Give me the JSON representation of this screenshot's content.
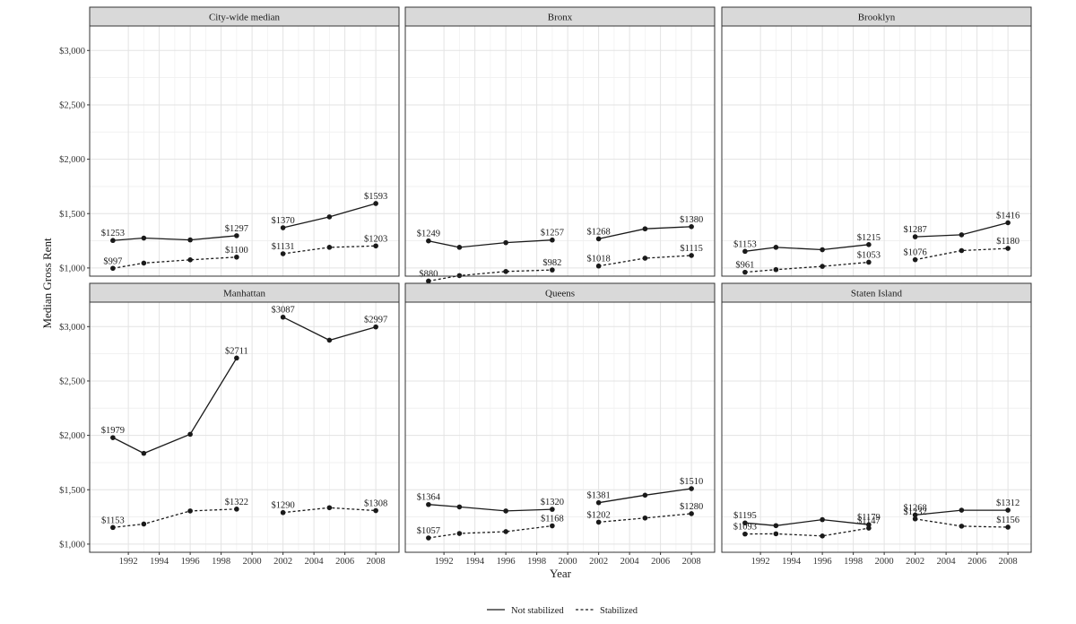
{
  "chart_data": {
    "type": "line",
    "xlabel": "Year",
    "ylabel": "Median Gross Rent",
    "x_ticks": [
      1992,
      1994,
      1996,
      1998,
      2000,
      2002,
      2004,
      2006,
      2008
    ],
    "xlim": [
      1989.5,
      2009.5
    ],
    "y_ticks": [
      1000,
      1500,
      2000,
      2500,
      3000
    ],
    "y_tick_labels": [
      "$1,000",
      "$1,500",
      "$2,000",
      "$2,500",
      "$3,000"
    ],
    "ylim": [
      925,
      3225
    ],
    "grid": true,
    "legend": {
      "position": "bottom",
      "entries": [
        {
          "label": "Not stabilized",
          "linestyle": "solid"
        },
        {
          "label": "Stabilized",
          "linestyle": "dashed"
        }
      ]
    },
    "panels": [
      {
        "title": "City-wide median",
        "series": [
          {
            "legend": "Not stabilized",
            "segments": [
              {
                "x": [
                  1991,
                  1993,
                  1996,
                  1999
                ],
                "y": [
                  1253,
                  1275,
                  1258,
                  1297
                ]
              },
              {
                "x": [
                  2002,
                  2005,
                  2008
                ],
                "y": [
                  1370,
                  1470,
                  1593
                ]
              }
            ]
          },
          {
            "legend": "Stabilized",
            "segments": [
              {
                "x": [
                  1991,
                  1993,
                  1996,
                  1999
                ],
                "y": [
                  997,
                  1045,
                  1075,
                  1100
                ]
              },
              {
                "x": [
                  2002,
                  2005,
                  2008
                ],
                "y": [
                  1131,
                  1190,
                  1203
                ]
              }
            ]
          }
        ],
        "labels": [
          {
            "x": 1991,
            "y": 1253,
            "text": "$1253"
          },
          {
            "x": 1999,
            "y": 1297,
            "text": "$1297"
          },
          {
            "x": 2002,
            "y": 1370,
            "text": "$1370"
          },
          {
            "x": 2008,
            "y": 1593,
            "text": "$1593"
          },
          {
            "x": 1991,
            "y": 997,
            "text": "$997"
          },
          {
            "x": 1999,
            "y": 1100,
            "text": "$1100"
          },
          {
            "x": 2002,
            "y": 1131,
            "text": "$1131"
          },
          {
            "x": 2008,
            "y": 1203,
            "text": "$1203"
          }
        ]
      },
      {
        "title": "Bronx",
        "series": [
          {
            "legend": "Not stabilized",
            "segments": [
              {
                "x": [
                  1991,
                  1993,
                  1996,
                  1999
                ],
                "y": [
                  1249,
                  1190,
                  1233,
                  1257
                ]
              },
              {
                "x": [
                  2002,
                  2005,
                  2008
                ],
                "y": [
                  1268,
                  1360,
                  1380
                ]
              }
            ]
          },
          {
            "legend": "Stabilized",
            "segments": [
              {
                "x": [
                  1991,
                  1993,
                  1996,
                  1999
                ],
                "y": [
                  880,
                  930,
                  968,
                  982
                ]
              },
              {
                "x": [
                  2002,
                  2005,
                  2008
                ],
                "y": [
                  1018,
                  1090,
                  1115
                ]
              }
            ]
          }
        ],
        "labels": [
          {
            "x": 1991,
            "y": 1249,
            "text": "$1249"
          },
          {
            "x": 1999,
            "y": 1257,
            "text": "$1257"
          },
          {
            "x": 2002,
            "y": 1268,
            "text": "$1268"
          },
          {
            "x": 2008,
            "y": 1380,
            "text": "$1380"
          },
          {
            "x": 1991,
            "y": 880,
            "text": "$880"
          },
          {
            "x": 1999,
            "y": 982,
            "text": "$982"
          },
          {
            "x": 2002,
            "y": 1018,
            "text": "$1018"
          },
          {
            "x": 2008,
            "y": 1115,
            "text": "$1115"
          }
        ]
      },
      {
        "title": "Brooklyn",
        "series": [
          {
            "legend": "Not stabilized",
            "segments": [
              {
                "x": [
                  1991,
                  1993,
                  1996,
                  1999
                ],
                "y": [
                  1153,
                  1190,
                  1168,
                  1215
                ]
              },
              {
                "x": [
                  2002,
                  2005,
                  2008
                ],
                "y": [
                  1287,
                  1305,
                  1416
                ]
              }
            ]
          },
          {
            "legend": "Stabilized",
            "segments": [
              {
                "x": [
                  1991,
                  1993,
                  1996,
                  1999
                ],
                "y": [
                  961,
                  985,
                  1015,
                  1053
                ]
              },
              {
                "x": [
                  2002,
                  2005,
                  2008
                ],
                "y": [
                  1076,
                  1160,
                  1180
                ]
              }
            ]
          }
        ],
        "labels": [
          {
            "x": 1991,
            "y": 1153,
            "text": "$1153"
          },
          {
            "x": 1999,
            "y": 1215,
            "text": "$1215"
          },
          {
            "x": 2002,
            "y": 1287,
            "text": "$1287"
          },
          {
            "x": 2008,
            "y": 1416,
            "text": "$1416"
          },
          {
            "x": 1991,
            "y": 961,
            "text": "$961"
          },
          {
            "x": 1999,
            "y": 1053,
            "text": "$1053"
          },
          {
            "x": 2002,
            "y": 1076,
            "text": "$1076"
          },
          {
            "x": 2008,
            "y": 1180,
            "text": "$1180"
          }
        ]
      },
      {
        "title": "Manhattan",
        "series": [
          {
            "legend": "Not stabilized",
            "segments": [
              {
                "x": [
                  1991,
                  1993,
                  1996,
                  1999
                ],
                "y": [
                  1979,
                  1835,
                  2010,
                  2711
                ]
              },
              {
                "x": [
                  2002,
                  2005,
                  2008
                ],
                "y": [
                  3087,
                  2875,
                  2997
                ]
              }
            ]
          },
          {
            "legend": "Stabilized",
            "segments": [
              {
                "x": [
                  1991,
                  1993,
                  1996,
                  1999
                ],
                "y": [
                  1153,
                  1185,
                  1305,
                  1322
                ]
              },
              {
                "x": [
                  2002,
                  2005,
                  2008
                ],
                "y": [
                  1290,
                  1335,
                  1308
                ]
              }
            ]
          }
        ],
        "labels": [
          {
            "x": 1991,
            "y": 1979,
            "text": "$1979"
          },
          {
            "x": 1999,
            "y": 2711,
            "text": "$2711"
          },
          {
            "x": 2002,
            "y": 3087,
            "text": "$3087"
          },
          {
            "x": 2008,
            "y": 2997,
            "text": "$2997"
          },
          {
            "x": 1991,
            "y": 1153,
            "text": "$1153"
          },
          {
            "x": 1999,
            "y": 1322,
            "text": "$1322"
          },
          {
            "x": 2002,
            "y": 1290,
            "text": "$1290"
          },
          {
            "x": 2008,
            "y": 1308,
            "text": "$1308"
          }
        ]
      },
      {
        "title": "Queens",
        "series": [
          {
            "legend": "Not stabilized",
            "segments": [
              {
                "x": [
                  1991,
                  1993,
                  1996,
                  1999
                ],
                "y": [
                  1364,
                  1342,
                  1305,
                  1320
                ]
              },
              {
                "x": [
                  2002,
                  2005,
                  2008
                ],
                "y": [
                  1381,
                  1450,
                  1510
                ]
              }
            ]
          },
          {
            "legend": "Stabilized",
            "segments": [
              {
                "x": [
                  1991,
                  1993,
                  1996,
                  1999
                ],
                "y": [
                  1057,
                  1098,
                  1115,
                  1168
                ]
              },
              {
                "x": [
                  2002,
                  2005,
                  2008
                ],
                "y": [
                  1202,
                  1240,
                  1280
                ]
              }
            ]
          }
        ],
        "labels": [
          {
            "x": 1991,
            "y": 1364,
            "text": "$1364"
          },
          {
            "x": 1999,
            "y": 1320,
            "text": "$1320"
          },
          {
            "x": 2002,
            "y": 1381,
            "text": "$1381"
          },
          {
            "x": 2008,
            "y": 1510,
            "text": "$1510"
          },
          {
            "x": 1991,
            "y": 1057,
            "text": "$1057"
          },
          {
            "x": 1999,
            "y": 1168,
            "text": "$1168"
          },
          {
            "x": 2002,
            "y": 1202,
            "text": "$1202"
          },
          {
            "x": 2008,
            "y": 1280,
            "text": "$1280"
          }
        ]
      },
      {
        "title": "Staten Island",
        "series": [
          {
            "legend": "Not stabilized",
            "segments": [
              {
                "x": [
                  1991,
                  1993,
                  1996,
                  1999
                ],
                "y": [
                  1195,
                  1170,
                  1225,
                  1179
                ]
              },
              {
                "x": [
                  2002,
                  2005,
                  2008
                ],
                "y": [
                  1268,
                  1312,
                  1312
                ]
              }
            ]
          },
          {
            "legend": "Stabilized",
            "segments": [
              {
                "x": [
                  1991,
                  1993,
                  1996,
                  1999
                ],
                "y": [
                  1093,
                  1095,
                  1075,
                  1147
                ]
              },
              {
                "x": [
                  2002,
                  2005,
                  2008
                ],
                "y": [
                  1232,
                  1165,
                  1156
                ]
              }
            ]
          }
        ],
        "labels": [
          {
            "x": 1991,
            "y": 1195,
            "text": "$1195"
          },
          {
            "x": 1999,
            "y": 1179,
            "text": "$1179"
          },
          {
            "x": 2002,
            "y": 1268,
            "text": "$1268"
          },
          {
            "x": 2008,
            "y": 1312,
            "text": "$1312"
          },
          {
            "x": 1991,
            "y": 1093,
            "text": "$1093"
          },
          {
            "x": 1999,
            "y": 1147,
            "text": "$1147"
          },
          {
            "x": 2002,
            "y": 1232,
            "text": "$1232"
          },
          {
            "x": 2008,
            "y": 1156,
            "text": "$1156"
          }
        ]
      }
    ]
  },
  "colors": {
    "line": "#1a1a1a",
    "panel_border": "#333333",
    "strip_fill": "#d9d9d9",
    "grid_major": "#e3e3e3",
    "grid_minor": "#f0f0f0"
  }
}
